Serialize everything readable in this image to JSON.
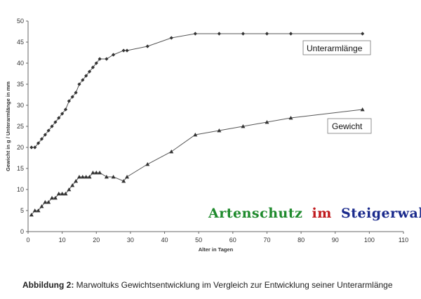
{
  "chart_data": {
    "type": "line",
    "title": "",
    "xlabel": "Alter in Tagen",
    "ylabel": "Gewicht in g / Unterarmlänge in mm",
    "xlim": [
      0,
      110
    ],
    "ylim": [
      0,
      50
    ],
    "xticks": [
      0,
      10,
      20,
      30,
      40,
      50,
      60,
      70,
      80,
      90,
      100,
      110
    ],
    "yticks": [
      0,
      5,
      10,
      15,
      20,
      25,
      30,
      35,
      40,
      45,
      50
    ],
    "grid": false,
    "series": [
      {
        "name": "Unterarmlänge",
        "marker": "diamond",
        "color": "#555555",
        "x": [
          1,
          2,
          3,
          4,
          5,
          6,
          7,
          8,
          9,
          10,
          11,
          12,
          13,
          14,
          15,
          16,
          17,
          18,
          19,
          20,
          21,
          23,
          25,
          28,
          29,
          35,
          42,
          49,
          56,
          63,
          70,
          77,
          98
        ],
        "y": [
          20,
          20,
          21,
          22,
          23,
          24,
          25,
          26,
          27,
          28,
          29,
          31,
          32,
          33,
          35,
          36,
          37,
          38,
          39,
          40,
          41,
          41,
          42,
          43,
          43,
          44,
          46,
          47,
          47,
          47,
          47,
          47,
          47
        ]
      },
      {
        "name": "Gewicht",
        "marker": "triangle",
        "color": "#555555",
        "x": [
          1,
          2,
          3,
          4,
          5,
          6,
          7,
          8,
          9,
          10,
          11,
          12,
          13,
          14,
          15,
          16,
          17,
          18,
          19,
          20,
          21,
          23,
          25,
          28,
          29,
          35,
          42,
          49,
          56,
          63,
          70,
          77,
          98
        ],
        "y": [
          4,
          5,
          5,
          6,
          7,
          7,
          8,
          8,
          9,
          9,
          9,
          10,
          11,
          12,
          13,
          13,
          13,
          13,
          14,
          14,
          14,
          13,
          13,
          12,
          13,
          16,
          19,
          23,
          24,
          25,
          26,
          27,
          29
        ]
      }
    ],
    "annotations": [
      {
        "text": "Unterarmlänge",
        "target": "Unterarmlänge",
        "position": "right, below line end"
      },
      {
        "text": "Gewicht",
        "target": "Gewicht",
        "position": "right, below line end"
      }
    ]
  },
  "watermark": {
    "word1": "Artenschutz",
    "word2": "im",
    "word3": "Steigerwald",
    "color1": "#1e8a2c",
    "color2": "#c0181c",
    "color3": "#1a2a8c"
  },
  "caption": {
    "label": "Abbildung 2:",
    "text": " Marwoltuks Gewichtsentwicklung im Vergleich zur Entwicklung seiner Unterarmlänge"
  }
}
